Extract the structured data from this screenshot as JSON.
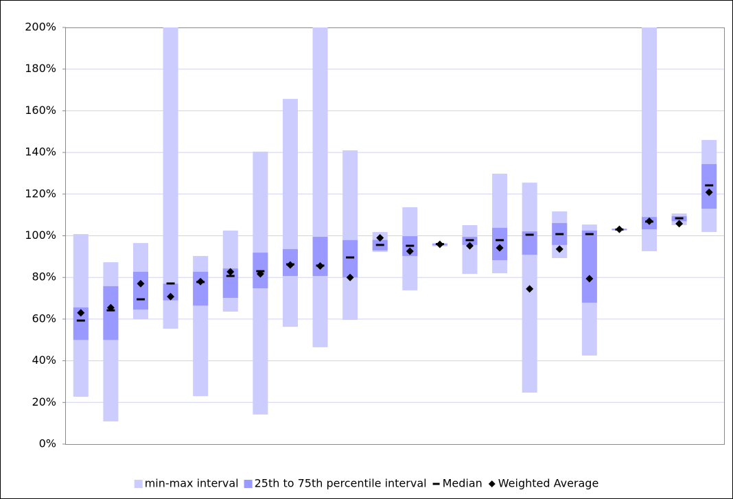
{
  "chart_data": {
    "type": "range",
    "categories": [
      null,
      null,
      null,
      null,
      null,
      null,
      null,
      null,
      null,
      null,
      null,
      null,
      null,
      null,
      null,
      null,
      null,
      null,
      null,
      null,
      null,
      null
    ],
    "ylim": [
      0,
      200
    ],
    "yticks": [
      {
        "value": 0,
        "label": "0%"
      },
      {
        "value": 20,
        "label": "20%"
      },
      {
        "value": 40,
        "label": "40%"
      },
      {
        "value": 60,
        "label": "60%"
      },
      {
        "value": 80,
        "label": "80%"
      },
      {
        "value": 100,
        "label": "100%"
      },
      {
        "value": 120,
        "label": "120%"
      },
      {
        "value": 140,
        "label": "140%"
      },
      {
        "value": 160,
        "label": "160%"
      },
      {
        "value": 180,
        "label": "180%"
      },
      {
        "value": 200,
        "label": "200%"
      }
    ],
    "grid": true,
    "legend": "bottom",
    "series": [
      {
        "name": "min-max interval",
        "color": "#ccccff",
        "low": [
          22.7,
          10.9,
          60,
          55.4,
          23,
          63.6,
          14.2,
          56.3,
          46.5,
          59.6,
          92.3,
          73.8,
          95,
          81.7,
          82,
          24.7,
          89.3,
          42.5,
          102.5,
          92.6,
          105.1,
          101.8
        ],
        "high": [
          100.8,
          87.3,
          96.5,
          200,
          90.3,
          102.5,
          140.4,
          165.7,
          200,
          141,
          101.8,
          113.7,
          96.5,
          105.1,
          129.8,
          125.5,
          111.7,
          105.4,
          103.5,
          200,
          110.7,
          146
        ]
      },
      {
        "name": "25th to 75th percentile interval",
        "color": "#9999ff",
        "low": [
          50,
          50,
          64.6,
          69,
          66.5,
          70.2,
          74.8,
          80.7,
          80.7,
          80,
          93,
          90.3,
          95.5,
          95.6,
          88.3,
          90.9,
          95.6,
          67.9,
          102.8,
          103.1,
          107,
          113
        ],
        "high": [
          65.6,
          75.8,
          82.7,
          77,
          82.7,
          84.3,
          91.9,
          93.6,
          99.5,
          97.9,
          98,
          99.8,
          96,
          99.5,
          103.8,
          102.1,
          106.1,
          102.5,
          103.3,
          109,
          109.4,
          134.4
        ]
      },
      {
        "name": "Median",
        "color": "#000000",
        "values": [
          59.3,
          64.2,
          69.5,
          77.1,
          77.8,
          80.7,
          83,
          86.3,
          85.7,
          89.6,
          95.6,
          95.2,
          96,
          97.9,
          97.9,
          100.5,
          100.8,
          100.8,
          103,
          106.8,
          108.4,
          124.2
        ]
      },
      {
        "name": "Weighted Average",
        "color": "#000000",
        "values": [
          63,
          65.5,
          77,
          70.8,
          78,
          82.7,
          81.7,
          86,
          85.5,
          80,
          99,
          92.6,
          95.9,
          95.2,
          94.2,
          74.5,
          93.6,
          79.4,
          103.1,
          107,
          105.8,
          120.9
        ]
      }
    ]
  }
}
